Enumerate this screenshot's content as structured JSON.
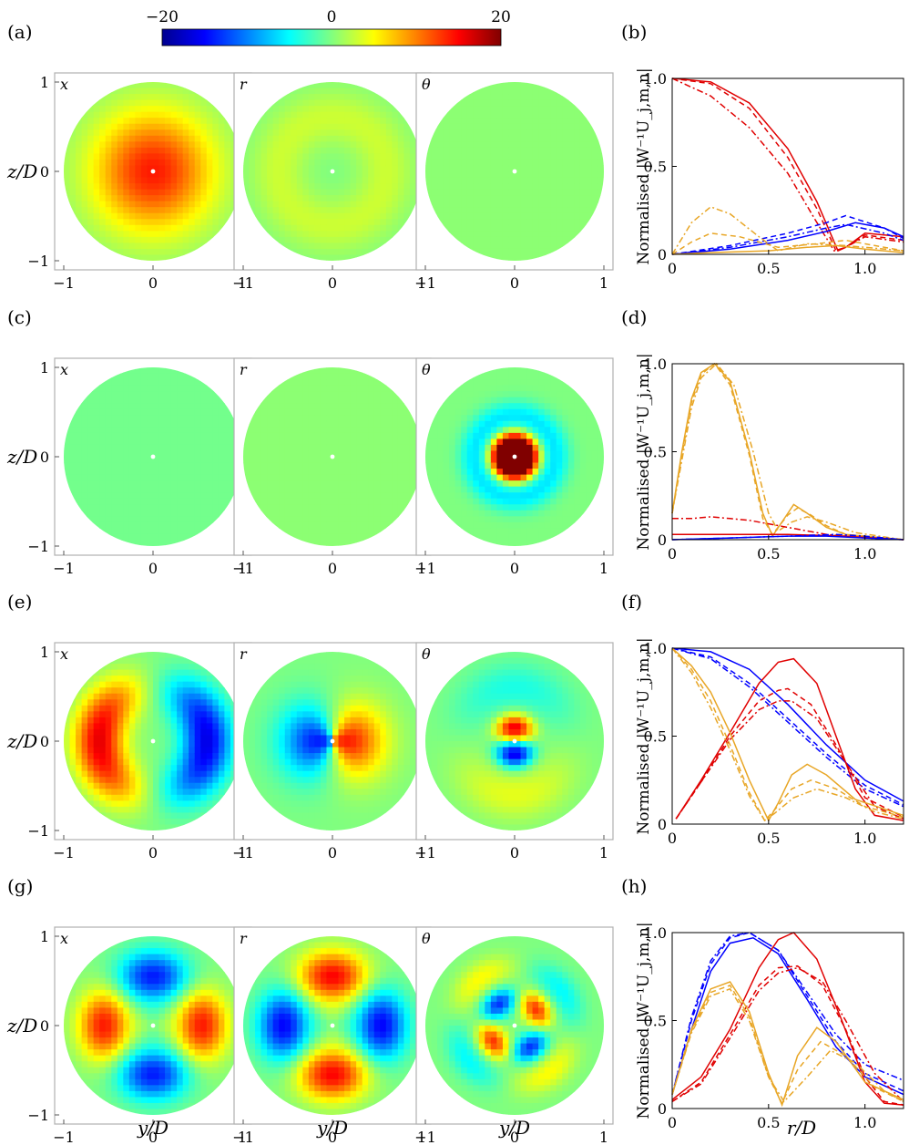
{
  "colorbar": {
    "ticks": [
      "−20",
      "0",
      "20"
    ],
    "colors": [
      "#00008f",
      "#0000ff",
      "#0080ff",
      "#00ffff",
      "#80ff80",
      "#ffff00",
      "#ff8000",
      "#ff0000",
      "#800000"
    ]
  },
  "labels": {
    "component_x": "x",
    "component_r": "r",
    "component_theta": "θ",
    "z_axis": "z/D",
    "y_axis": "y/D",
    "r_axis": "r/D",
    "profile_ylabel": "Normalised |W⁻¹U_j,m,n|"
  },
  "series_colors": {
    "x": "#0000ff",
    "r": "#e00000",
    "theta": "#e8a626"
  },
  "chart_data": [
    {
      "row": 0,
      "panel_left": "(a)",
      "panel_right": "(b)",
      "type": "line",
      "maps": [
        {
          "component": "x",
          "pattern": "monopole",
          "amp": 14,
          "sigma": 0.5
        },
        {
          "component": "r",
          "pattern": "ring",
          "amp": 3,
          "sigma": 0.6
        },
        {
          "component": "θ",
          "pattern": "flat",
          "amp": 0.5,
          "sigma": 0.5
        }
      ],
      "xlim": [
        0,
        1.2
      ],
      "ylim": [
        0,
        1.0
      ],
      "xticks": [
        "0",
        "0.5",
        "1.0"
      ],
      "yticks": [
        "0",
        "0.5",
        "1.0"
      ],
      "series": [
        {
          "component": "r",
          "style": "solid",
          "x": [
            0,
            0.2,
            0.4,
            0.6,
            0.75,
            0.86,
            0.9,
            1.0,
            1.2
          ],
          "y": [
            1.0,
            0.98,
            0.86,
            0.6,
            0.3,
            0.02,
            0.04,
            0.12,
            0.1
          ]
        },
        {
          "component": "r",
          "style": "dashed",
          "x": [
            0,
            0.2,
            0.4,
            0.6,
            0.75,
            0.85,
            0.9,
            1.0,
            1.2
          ],
          "y": [
            1.0,
            0.97,
            0.83,
            0.55,
            0.26,
            0.02,
            0.04,
            0.11,
            0.08
          ]
        },
        {
          "component": "r",
          "style": "dashdot",
          "x": [
            0,
            0.2,
            0.4,
            0.6,
            0.74,
            0.84,
            0.9,
            1.0,
            1.2
          ],
          "y": [
            1.0,
            0.9,
            0.72,
            0.46,
            0.2,
            0.02,
            0.04,
            0.1,
            0.07
          ]
        },
        {
          "component": "x",
          "style": "solid",
          "x": [
            0,
            0.3,
            0.6,
            0.8,
            0.95,
            1.1,
            1.2
          ],
          "y": [
            0.0,
            0.03,
            0.08,
            0.13,
            0.18,
            0.15,
            0.1
          ]
        },
        {
          "component": "x",
          "style": "dashed",
          "x": [
            0,
            0.3,
            0.6,
            0.8,
            0.9,
            1.1,
            1.2
          ],
          "y": [
            0.0,
            0.05,
            0.12,
            0.18,
            0.22,
            0.15,
            0.09
          ]
        },
        {
          "component": "x",
          "style": "dashdot",
          "x": [
            0,
            0.3,
            0.6,
            0.8,
            0.9,
            1.1,
            1.2
          ],
          "y": [
            0.0,
            0.04,
            0.1,
            0.15,
            0.17,
            0.12,
            0.08
          ]
        },
        {
          "component": "θ",
          "style": "solid",
          "x": [
            0,
            0.2,
            0.5,
            0.7,
            0.85,
            1.0,
            1.2
          ],
          "y": [
            0.0,
            0.01,
            0.02,
            0.04,
            0.05,
            0.03,
            0.01
          ]
        },
        {
          "component": "θ",
          "style": "dashed",
          "x": [
            0,
            0.1,
            0.2,
            0.35,
            0.55,
            0.75,
            0.9,
            1.2
          ],
          "y": [
            0.0,
            0.07,
            0.12,
            0.1,
            0.04,
            0.06,
            0.08,
            0.02
          ]
        },
        {
          "component": "θ",
          "style": "dashdot",
          "x": [
            0,
            0.1,
            0.2,
            0.3,
            0.45,
            0.55,
            0.7,
            0.9,
            1.2
          ],
          "y": [
            0.0,
            0.18,
            0.27,
            0.23,
            0.1,
            0.02,
            0.06,
            0.05,
            0.02
          ]
        }
      ]
    },
    {
      "row": 1,
      "panel_left": "(c)",
      "panel_right": "(d)",
      "type": "line",
      "maps": [
        {
          "component": "x",
          "pattern": "flat",
          "amp": -0.5,
          "sigma": 0.5
        },
        {
          "component": "r",
          "pattern": "flat",
          "amp": 0.5,
          "sigma": 0.5
        },
        {
          "component": "θ",
          "pattern": "vortex",
          "amp": 28,
          "sigma": 0.2
        }
      ],
      "xlim": [
        0,
        1.2
      ],
      "ylim": [
        0,
        1.0
      ],
      "xticks": [
        "0",
        "0.5",
        "1.0"
      ],
      "yticks": [
        "0",
        "0.5",
        "1.0"
      ],
      "series": [
        {
          "component": "θ",
          "style": "solid",
          "x": [
            0,
            0.05,
            0.1,
            0.15,
            0.22,
            0.3,
            0.4,
            0.47,
            0.52,
            0.6,
            0.63,
            0.7,
            0.8,
            0.9,
            1.2
          ],
          "y": [
            0.15,
            0.5,
            0.8,
            0.95,
            1.0,
            0.9,
            0.5,
            0.15,
            0.02,
            0.15,
            0.2,
            0.15,
            0.07,
            0.03,
            0.0
          ]
        },
        {
          "component": "θ",
          "style": "dashed",
          "x": [
            0,
            0.05,
            0.1,
            0.15,
            0.22,
            0.3,
            0.4,
            0.47,
            0.52,
            0.6,
            0.65,
            0.72,
            0.8,
            0.9,
            1.2
          ],
          "y": [
            0.15,
            0.48,
            0.78,
            0.94,
            1.0,
            0.88,
            0.48,
            0.12,
            0.03,
            0.14,
            0.18,
            0.14,
            0.08,
            0.03,
            0.0
          ]
        },
        {
          "component": "θ",
          "style": "dashdot",
          "x": [
            0,
            0.05,
            0.1,
            0.15,
            0.23,
            0.32,
            0.42,
            0.5,
            0.55,
            0.62,
            0.7,
            0.8,
            0.95,
            1.2
          ],
          "y": [
            0.15,
            0.45,
            0.75,
            0.92,
            1.0,
            0.88,
            0.5,
            0.15,
            0.05,
            0.1,
            0.13,
            0.1,
            0.04,
            0.0
          ]
        },
        {
          "component": "r",
          "style": "solid",
          "x": [
            0,
            0.2,
            0.4,
            0.6,
            0.9,
            1.2
          ],
          "y": [
            0.03,
            0.03,
            0.03,
            0.03,
            0.02,
            0.0
          ]
        },
        {
          "component": "r",
          "style": "dashdot",
          "x": [
            0,
            0.1,
            0.2,
            0.3,
            0.4,
            0.5,
            0.6,
            0.7,
            0.8,
            0.9,
            1.0,
            1.2
          ],
          "y": [
            0.12,
            0.12,
            0.13,
            0.12,
            0.11,
            0.09,
            0.07,
            0.05,
            0.03,
            0.02,
            0.01,
            0.0
          ]
        },
        {
          "component": "x",
          "style": "solid",
          "x": [
            0,
            0.3,
            0.6,
            0.8,
            1.0,
            1.2
          ],
          "y": [
            0.0,
            0.01,
            0.02,
            0.02,
            0.01,
            0.0
          ]
        },
        {
          "component": "x",
          "style": "dashdot",
          "x": [
            0,
            0.3,
            0.6,
            0.85,
            1.0,
            1.2
          ],
          "y": [
            0.0,
            0.01,
            0.02,
            0.03,
            0.02,
            0.0
          ]
        }
      ]
    },
    {
      "row": 2,
      "panel_left": "(e)",
      "panel_right": "(f)",
      "type": "line",
      "maps": [
        {
          "component": "x",
          "pattern": "dipole",
          "amp": -16,
          "sigma": 0.55
        },
        {
          "component": "r",
          "pattern": "radial-dipole",
          "amp": 14,
          "sigma": 0.5
        },
        {
          "component": "θ",
          "pattern": "quad-center",
          "amp": 16,
          "sigma": 0.25
        }
      ],
      "xlim": [
        0,
        1.2
      ],
      "ylim": [
        0,
        1.0
      ],
      "xticks": [
        "0",
        "0.5",
        "1.0"
      ],
      "yticks": [
        "0",
        "0.5",
        "1.0"
      ],
      "series": [
        {
          "component": "x",
          "style": "solid",
          "x": [
            0,
            0.2,
            0.4,
            0.6,
            0.8,
            1.0,
            1.2
          ],
          "y": [
            1.0,
            0.98,
            0.88,
            0.68,
            0.45,
            0.25,
            0.13
          ]
        },
        {
          "component": "x",
          "style": "dashed",
          "x": [
            0,
            0.2,
            0.4,
            0.6,
            0.8,
            1.0,
            1.2
          ],
          "y": [
            1.0,
            0.95,
            0.8,
            0.6,
            0.4,
            0.22,
            0.11
          ]
        },
        {
          "component": "x",
          "style": "dashdot",
          "x": [
            0,
            0.2,
            0.4,
            0.6,
            0.8,
            1.0,
            1.2
          ],
          "y": [
            1.0,
            0.94,
            0.78,
            0.58,
            0.38,
            0.2,
            0.1
          ]
        },
        {
          "component": "r",
          "style": "solid",
          "x": [
            0.02,
            0.15,
            0.3,
            0.45,
            0.55,
            0.63,
            0.75,
            0.85,
            0.95,
            1.05,
            1.2
          ],
          "y": [
            0.03,
            0.25,
            0.52,
            0.8,
            0.92,
            0.94,
            0.8,
            0.5,
            0.2,
            0.05,
            0.02
          ]
        },
        {
          "component": "r",
          "style": "dashed",
          "x": [
            0.02,
            0.15,
            0.3,
            0.45,
            0.55,
            0.6,
            0.72,
            0.85,
            1.0,
            1.2
          ],
          "y": [
            0.03,
            0.24,
            0.5,
            0.7,
            0.76,
            0.77,
            0.68,
            0.45,
            0.15,
            0.04
          ]
        },
        {
          "component": "r",
          "style": "dashdot",
          "x": [
            0.02,
            0.15,
            0.3,
            0.45,
            0.55,
            0.62,
            0.75,
            0.9,
            1.05,
            1.2
          ],
          "y": [
            0.03,
            0.24,
            0.48,
            0.65,
            0.7,
            0.7,
            0.6,
            0.35,
            0.1,
            0.03
          ]
        },
        {
          "component": "θ",
          "style": "solid",
          "x": [
            0,
            0.1,
            0.2,
            0.3,
            0.4,
            0.5,
            0.55,
            0.62,
            0.7,
            0.8,
            0.95,
            1.2
          ],
          "y": [
            1.0,
            0.9,
            0.75,
            0.52,
            0.25,
            0.02,
            0.12,
            0.28,
            0.34,
            0.28,
            0.14,
            0.05
          ]
        },
        {
          "component": "θ",
          "style": "dashed",
          "x": [
            0,
            0.1,
            0.2,
            0.3,
            0.4,
            0.48,
            0.53,
            0.62,
            0.72,
            0.85,
            1.0,
            1.2
          ],
          "y": [
            1.0,
            0.88,
            0.7,
            0.45,
            0.18,
            0.02,
            0.08,
            0.2,
            0.25,
            0.2,
            0.1,
            0.04
          ]
        },
        {
          "component": "θ",
          "style": "dashdot",
          "x": [
            0,
            0.1,
            0.2,
            0.3,
            0.4,
            0.48,
            0.53,
            0.63,
            0.75,
            0.9,
            1.05,
            1.2
          ],
          "y": [
            1.0,
            0.86,
            0.66,
            0.42,
            0.16,
            0.02,
            0.06,
            0.15,
            0.2,
            0.15,
            0.07,
            0.03
          ]
        }
      ]
    },
    {
      "row": 3,
      "panel_left": "(g)",
      "panel_right": "(h)",
      "type": "line",
      "maps": [
        {
          "component": "x",
          "pattern": "quadrupole",
          "amp": 14,
          "sigma": 0.6
        },
        {
          "component": "r",
          "pattern": "quadrupole",
          "amp": -15,
          "sigma": 0.5
        },
        {
          "component": "θ",
          "pattern": "octupole",
          "amp": 13,
          "sigma": 0.3
        }
      ],
      "xlim": [
        0,
        1.2
      ],
      "ylim": [
        0,
        1.0
      ],
      "xticks": [
        "0",
        "0.5",
        "1.0"
      ],
      "yticks": [
        "0",
        "0.5",
        "1.0"
      ],
      "series": [
        {
          "component": "x",
          "style": "solid",
          "x": [
            0,
            0.1,
            0.2,
            0.3,
            0.42,
            0.55,
            0.7,
            0.85,
            1.0,
            1.2
          ],
          "y": [
            0.08,
            0.45,
            0.78,
            0.94,
            0.97,
            0.88,
            0.62,
            0.35,
            0.18,
            0.08
          ]
        },
        {
          "component": "x",
          "style": "dashed",
          "x": [
            0,
            0.1,
            0.2,
            0.3,
            0.4,
            0.55,
            0.7,
            0.85,
            1.0,
            1.2
          ],
          "y": [
            0.08,
            0.5,
            0.82,
            0.97,
            1.0,
            0.9,
            0.64,
            0.38,
            0.2,
            0.1
          ]
        },
        {
          "component": "x",
          "style": "dashdot",
          "x": [
            0,
            0.1,
            0.2,
            0.3,
            0.4,
            0.55,
            0.7,
            0.85,
            1.0,
            1.2
          ],
          "y": [
            0.08,
            0.52,
            0.84,
            0.98,
            1.0,
            0.9,
            0.66,
            0.42,
            0.25,
            0.16
          ]
        },
        {
          "component": "r",
          "style": "solid",
          "x": [
            0,
            0.15,
            0.3,
            0.45,
            0.55,
            0.63,
            0.75,
            0.88,
            1.0,
            1.1,
            1.2
          ],
          "y": [
            0.05,
            0.18,
            0.45,
            0.8,
            0.96,
            1.0,
            0.85,
            0.5,
            0.15,
            0.03,
            0.02
          ]
        },
        {
          "component": "r",
          "style": "dashed",
          "x": [
            0,
            0.15,
            0.3,
            0.45,
            0.55,
            0.65,
            0.78,
            0.9,
            1.0,
            1.1,
            1.2
          ],
          "y": [
            0.04,
            0.15,
            0.42,
            0.7,
            0.8,
            0.81,
            0.7,
            0.45,
            0.18,
            0.04,
            0.02
          ]
        },
        {
          "component": "r",
          "style": "dashdot",
          "x": [
            0,
            0.15,
            0.3,
            0.45,
            0.55,
            0.65,
            0.78,
            0.9,
            1.05,
            1.2
          ],
          "y": [
            0.04,
            0.14,
            0.4,
            0.67,
            0.77,
            0.8,
            0.72,
            0.5,
            0.2,
            0.04
          ]
        },
        {
          "component": "θ",
          "style": "solid",
          "x": [
            0,
            0.1,
            0.2,
            0.3,
            0.4,
            0.5,
            0.57,
            0.65,
            0.75,
            0.85,
            1.0,
            1.2
          ],
          "y": [
            0.08,
            0.45,
            0.68,
            0.72,
            0.55,
            0.2,
            0.02,
            0.3,
            0.46,
            0.38,
            0.15,
            0.05
          ]
        },
        {
          "component": "θ",
          "style": "dashed",
          "x": [
            0,
            0.1,
            0.2,
            0.3,
            0.4,
            0.5,
            0.57,
            0.65,
            0.77,
            0.9,
            1.05,
            1.2
          ],
          "y": [
            0.08,
            0.44,
            0.66,
            0.7,
            0.52,
            0.18,
            0.03,
            0.22,
            0.38,
            0.3,
            0.12,
            0.04
          ]
        },
        {
          "component": "θ",
          "style": "dashdot",
          "x": [
            0,
            0.1,
            0.2,
            0.3,
            0.4,
            0.5,
            0.58,
            0.7,
            0.82,
            0.95,
            1.1,
            1.2
          ],
          "y": [
            0.08,
            0.43,
            0.64,
            0.68,
            0.5,
            0.18,
            0.04,
            0.18,
            0.33,
            0.26,
            0.1,
            0.04
          ]
        }
      ]
    }
  ]
}
